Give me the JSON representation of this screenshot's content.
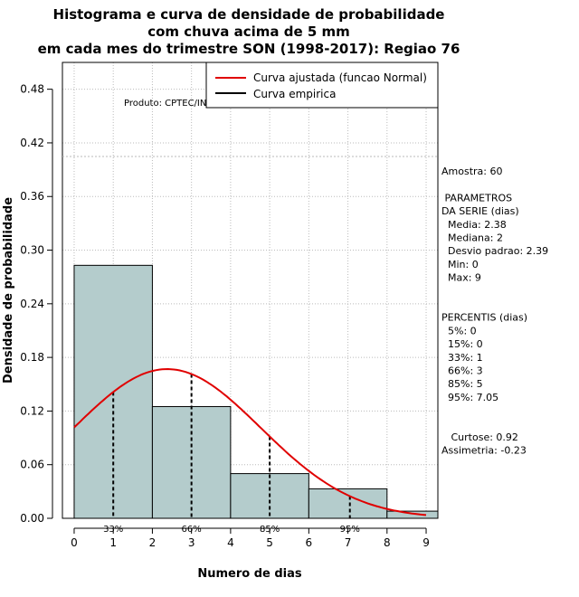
{
  "chart_data": {
    "type": "histogram",
    "title": [
      "Histograma e curva de densidade de probabilidade",
      "com chuva acima de 5 mm",
      "em cada mes do trimestre SON (1998-2017): Regiao 76"
    ],
    "xlabel": "Numero de dias",
    "ylabel": "Densidade de probabilidade",
    "xlim": [
      -0.3,
      9.3
    ],
    "ylim": [
      0,
      0.51
    ],
    "x_ticks": [
      "0",
      "1",
      "2",
      "3",
      "4",
      "5",
      "6",
      "7",
      "8",
      "9"
    ],
    "y_ticks": [
      "0.00",
      "0.06",
      "0.12",
      "0.18",
      "0.24",
      "0.30",
      "0.36",
      "0.42",
      "0.48"
    ],
    "bins": [
      {
        "from": 0,
        "to": 2,
        "density": 0.283
      },
      {
        "from": 2,
        "to": 4,
        "density": 0.125
      },
      {
        "from": 4,
        "to": 6,
        "density": 0.05
      },
      {
        "from": 6,
        "to": 8,
        "density": 0.033
      },
      {
        "from": 8,
        "to": 10,
        "density": 0.008
      }
    ],
    "normal_curve": {
      "mean": 2.38,
      "sd": 2.39,
      "x_from": 0,
      "x_to": 9
    },
    "percentile_lines": [
      {
        "label": "33%",
        "x": 1
      },
      {
        "label": "66%",
        "x": 3
      },
      {
        "label": "85%",
        "x": 5
      },
      {
        "label": "95%",
        "x": 7.05
      }
    ],
    "legend": [
      {
        "label": "Curva ajustada (funcao Normal)",
        "color": "#e00000"
      },
      {
        "label": "Curva empirica",
        "color": "#000000"
      }
    ],
    "produto": "Produto: CPTEC/INPE",
    "stats_lines": [
      "Amostra: 60",
      "",
      " PARAMETROS",
      "DA SERIE (dias)",
      "  Media: 2.38",
      "  Mediana: 2",
      "  Desvio padrao: 2.39",
      "  Min: 0",
      "  Max: 9",
      "",
      "",
      "PERCENTIS (dias)",
      "  5%: 0",
      "  15%: 0",
      "  33%: 1",
      "  66%: 3",
      "  85%: 5",
      "  95%: 7.05",
      "",
      "",
      "   Curtose: 0.92",
      "Assimetria: -0.23"
    ],
    "colors": {
      "bar_fill": "#b4cccc",
      "curve": "#e00000",
      "grid": "#bbbbbb"
    }
  }
}
